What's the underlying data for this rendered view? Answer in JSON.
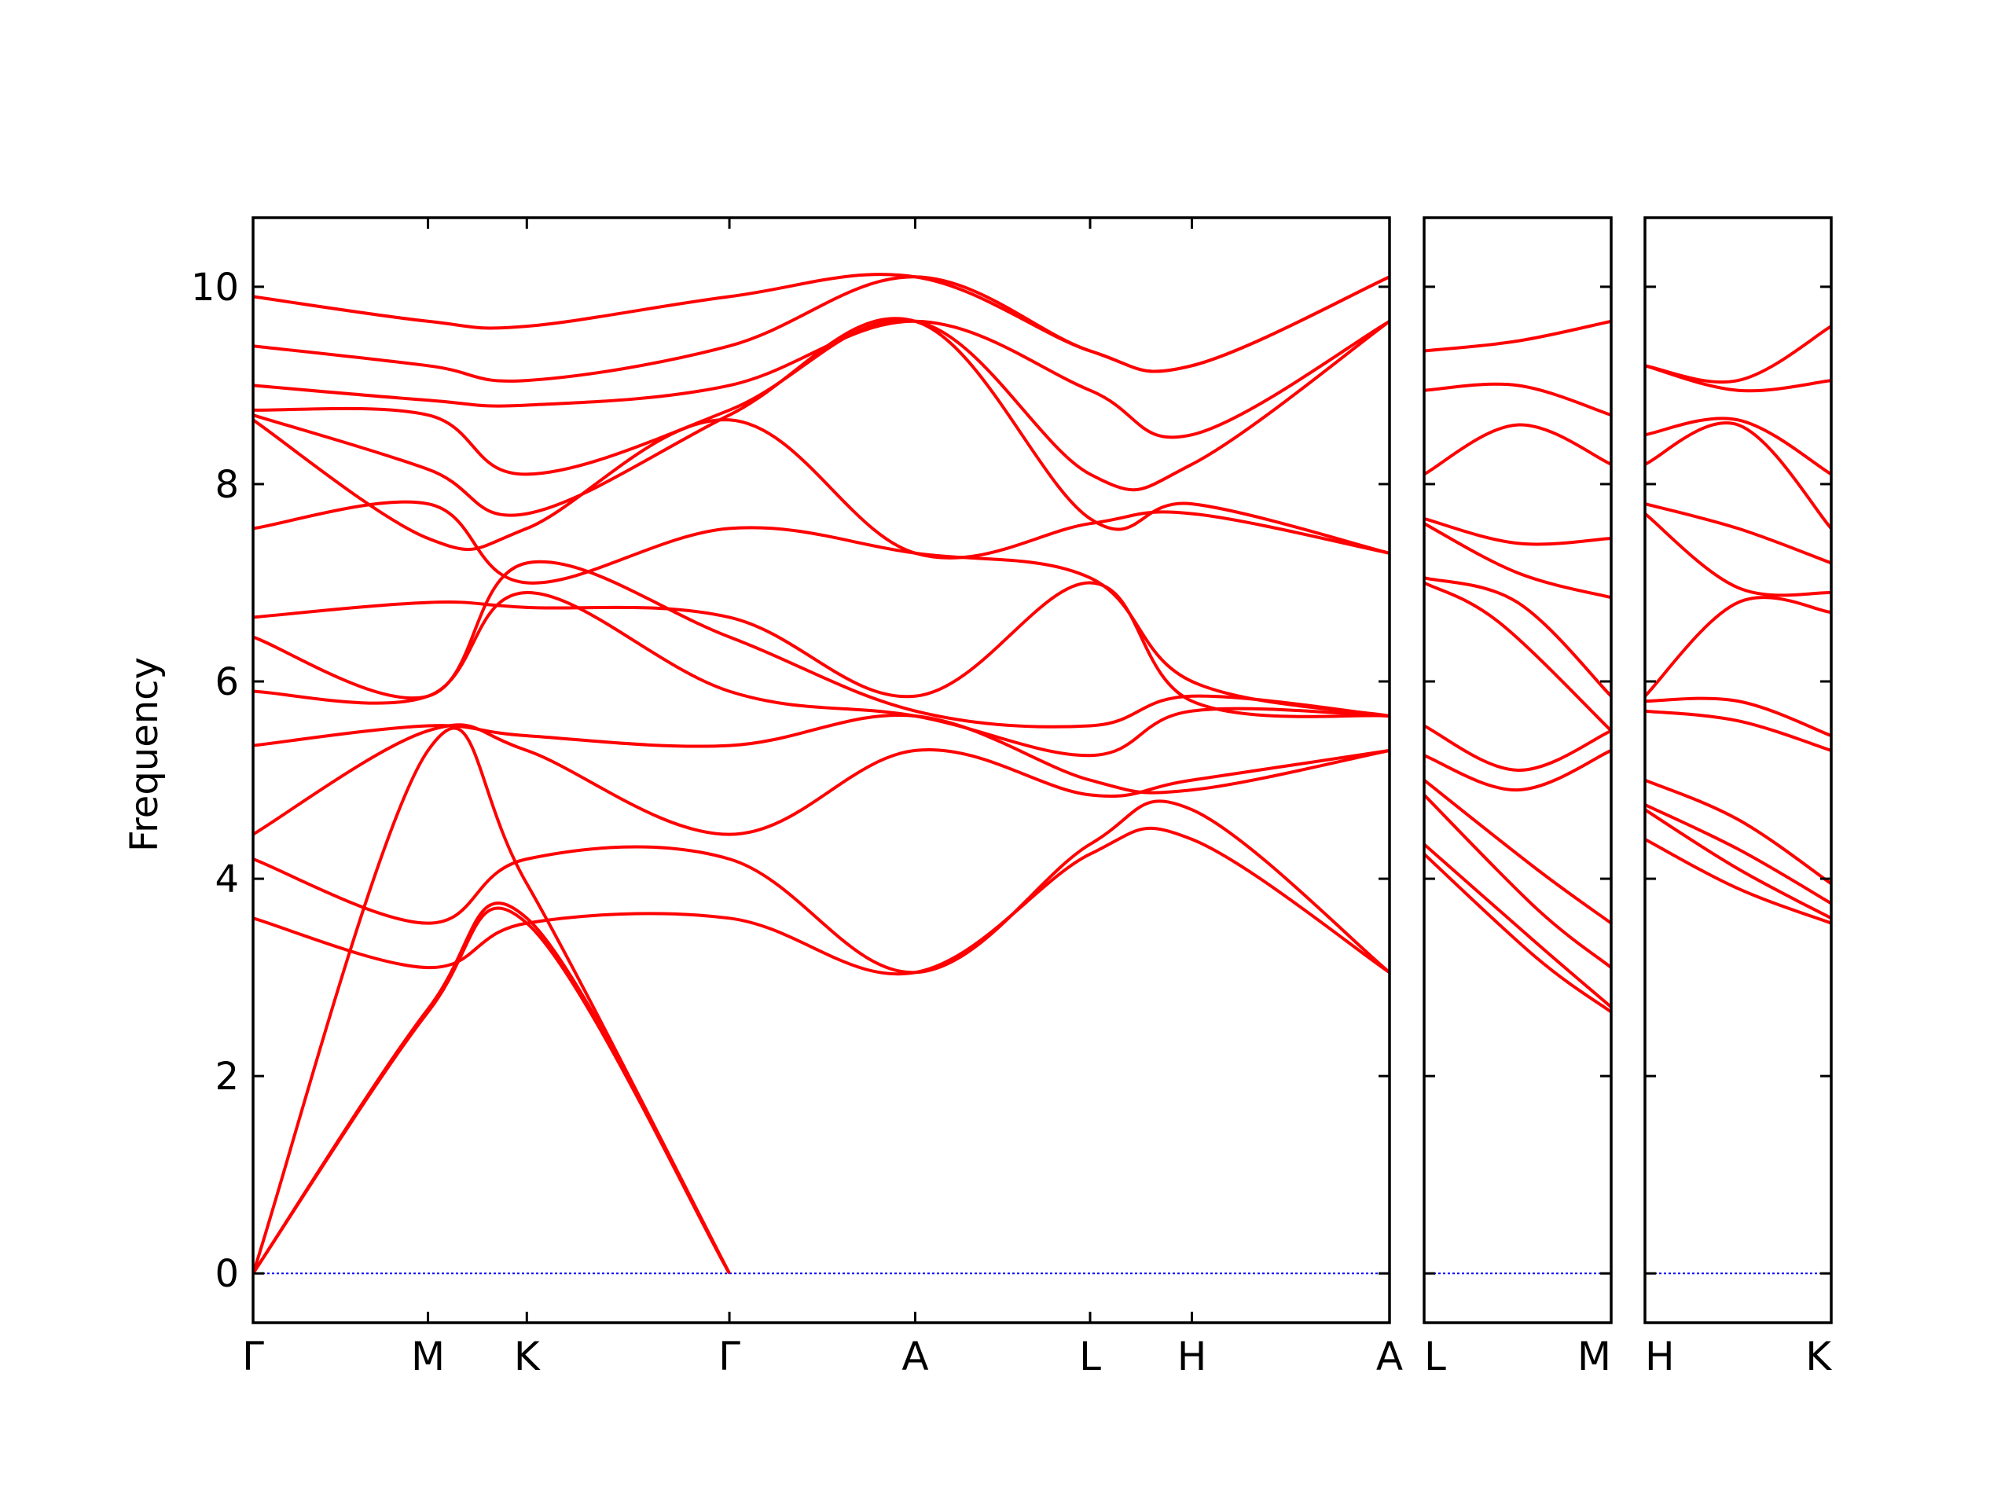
{
  "chart_data": {
    "type": "line",
    "ylabel": "Frequency",
    "ylim": [
      -0.5,
      10.7
    ],
    "yticks": [
      0,
      2,
      4,
      6,
      8,
      10
    ],
    "grid": false,
    "colors": {
      "bands": "#ff0000",
      "zero_line": "#0000ff",
      "axes": "#000000"
    },
    "panels": [
      {
        "xlim": [
          0,
          11.5
        ],
        "ticks": [
          {
            "x": 0,
            "label": "Γ"
          },
          {
            "x": 1.77,
            "label": "M"
          },
          {
            "x": 2.77,
            "label": "K"
          },
          {
            "x": 4.82,
            "label": "Γ"
          },
          {
            "x": 6.7,
            "label": "A"
          },
          {
            "x": 8.47,
            "label": "L"
          },
          {
            "x": 9.5,
            "label": "H"
          },
          {
            "x": 11.5,
            "label": "A"
          }
        ],
        "series": [
          {
            "x": [
              0,
              1.77,
              2.77,
              4.82
            ],
            "values": [
              0,
              2.65,
              3.55,
              0
            ]
          },
          {
            "x": [
              0,
              1.77,
              2.77,
              4.82
            ],
            "values": [
              0,
              2.68,
              3.6,
              0
            ]
          },
          {
            "x": [
              0,
              1.77,
              2.77,
              4.82
            ],
            "values": [
              0,
              5.3,
              3.95,
              0
            ]
          },
          {
            "x": [
              0,
              1.77,
              2.77,
              4.82,
              6.7,
              8.47,
              9.5,
              11.5
            ],
            "values": [
              3.6,
              3.1,
              3.55,
              3.6,
              3.05,
              4.25,
              4.4,
              3.05
            ]
          },
          {
            "x": [
              0,
              1.77,
              2.77,
              4.82,
              6.7,
              8.47,
              9.5,
              11.5
            ],
            "values": [
              4.2,
              3.55,
              4.2,
              4.2,
              3.05,
              4.35,
              4.7,
              3.05
            ]
          },
          {
            "x": [
              0,
              1.77,
              2.77,
              4.82,
              6.7,
              8.47,
              9.5,
              11.5
            ],
            "values": [
              4.45,
              5.5,
              5.3,
              4.45,
              5.3,
              4.85,
              5.0,
              5.3
            ]
          },
          {
            "x": [
              0,
              1.77,
              2.77,
              4.82,
              6.7,
              8.47,
              9.5,
              11.5
            ],
            "values": [
              5.35,
              5.55,
              5.45,
              5.35,
              5.65,
              5.0,
              4.9,
              5.3
            ]
          },
          {
            "x": [
              0,
              1.77,
              2.77,
              4.82,
              6.7,
              8.47,
              9.5,
              11.5
            ],
            "values": [
              5.9,
              5.85,
              6.9,
              5.9,
              5.65,
              5.25,
              5.7,
              5.65
            ]
          },
          {
            "x": [
              0,
              1.77,
              2.77,
              4.82,
              6.7,
              8.47,
              9.5,
              11.5
            ],
            "values": [
              6.45,
              5.85,
              7.2,
              6.45,
              5.7,
              5.55,
              5.85,
              5.65
            ]
          },
          {
            "x": [
              0,
              1.77,
              2.77,
              4.82,
              6.7,
              8.47,
              9.5,
              11.5
            ],
            "values": [
              6.65,
              6.8,
              6.75,
              6.65,
              5.85,
              7.0,
              5.8,
              5.65
            ]
          },
          {
            "x": [
              0,
              1.77,
              2.77,
              4.82,
              6.7,
              8.47,
              9.5,
              11.5
            ],
            "values": [
              7.55,
              7.8,
              7.0,
              7.55,
              7.3,
              7.05,
              6.0,
              5.65
            ]
          },
          {
            "x": [
              0,
              1.77,
              2.77,
              4.82,
              6.7,
              8.47,
              9.5,
              11.5
            ],
            "values": [
              8.65,
              7.45,
              7.55,
              8.65,
              7.3,
              7.6,
              7.7,
              7.3
            ]
          },
          {
            "x": [
              0,
              1.77,
              2.77,
              4.82,
              6.7,
              8.47,
              9.5,
              11.5
            ],
            "values": [
              8.7,
              8.15,
              7.7,
              8.7,
              9.65,
              7.65,
              7.8,
              7.3
            ]
          },
          {
            "x": [
              0,
              1.77,
              2.77,
              4.82,
              6.7,
              8.47,
              9.5,
              11.5
            ],
            "values": [
              8.75,
              8.7,
              8.1,
              8.75,
              9.65,
              8.1,
              8.2,
              9.65
            ]
          },
          {
            "x": [
              0,
              1.77,
              2.77,
              4.82,
              6.7,
              8.47,
              9.5,
              11.5
            ],
            "values": [
              9.0,
              8.85,
              8.8,
              9.0,
              9.65,
              8.95,
              8.5,
              9.65
            ]
          },
          {
            "x": [
              0,
              1.77,
              2.77,
              4.82,
              6.7,
              8.47,
              9.5,
              11.5
            ],
            "values": [
              9.4,
              9.2,
              9.05,
              9.4,
              10.1,
              9.35,
              9.2,
              10.1
            ]
          },
          {
            "x": [
              0,
              1.77,
              2.77,
              4.82,
              6.7,
              8.47,
              9.5,
              11.5
            ],
            "values": [
              9.9,
              9.65,
              9.6,
              9.9,
              10.1,
              9.35,
              9.2,
              10.1
            ]
          }
        ]
      },
      {
        "xlim": [
          0,
          1
        ],
        "ticks": [
          {
            "x": 0,
            "label": "L"
          },
          {
            "x": 1,
            "label": "M"
          }
        ],
        "series": [
          {
            "x": [
              0,
              0.6,
              1
            ],
            "values": [
              4.25,
              3.2,
              2.65
            ]
          },
          {
            "x": [
              0,
              0.6,
              1
            ],
            "values": [
              4.35,
              3.35,
              2.7
            ]
          },
          {
            "x": [
              0,
              0.6,
              1
            ],
            "values": [
              4.85,
              3.7,
              3.1
            ]
          },
          {
            "x": [
              0,
              0.6,
              1
            ],
            "values": [
              5.0,
              4.1,
              3.55
            ]
          },
          {
            "x": [
              0,
              0.5,
              1
            ],
            "values": [
              5.25,
              4.9,
              5.3
            ]
          },
          {
            "x": [
              0,
              0.5,
              1
            ],
            "values": [
              5.55,
              5.1,
              5.5
            ]
          },
          {
            "x": [
              0,
              0.4,
              1
            ],
            "values": [
              7.0,
              6.6,
              5.5
            ]
          },
          {
            "x": [
              0,
              0.5,
              1
            ],
            "values": [
              7.05,
              6.8,
              5.85
            ]
          },
          {
            "x": [
              0,
              0.5,
              1
            ],
            "values": [
              7.6,
              7.1,
              6.85
            ]
          },
          {
            "x": [
              0,
              0.5,
              1
            ],
            "values": [
              7.65,
              7.4,
              7.45
            ]
          },
          {
            "x": [
              0,
              0.5,
              1
            ],
            "values": [
              8.1,
              8.6,
              8.2
            ]
          },
          {
            "x": [
              0,
              0.5,
              1
            ],
            "values": [
              8.95,
              9.0,
              8.7
            ]
          },
          {
            "x": [
              0,
              0.5,
              1
            ],
            "values": [
              9.35,
              9.45,
              9.65
            ]
          }
        ]
      },
      {
        "xlim": [
          0,
          1
        ],
        "ticks": [
          {
            "x": 0,
            "label": "H"
          },
          {
            "x": 1,
            "label": "K"
          }
        ],
        "series": [
          {
            "x": [
              0,
              0.5,
              1
            ],
            "values": [
              4.4,
              3.9,
              3.55
            ]
          },
          {
            "x": [
              0,
              0.5,
              1
            ],
            "values": [
              4.7,
              4.1,
              3.6
            ]
          },
          {
            "x": [
              0,
              0.5,
              1
            ],
            "values": [
              4.75,
              4.3,
              3.75
            ]
          },
          {
            "x": [
              0,
              0.5,
              1
            ],
            "values": [
              5.0,
              4.6,
              3.95
            ]
          },
          {
            "x": [
              0,
              0.5,
              1
            ],
            "values": [
              5.7,
              5.6,
              5.3
            ]
          },
          {
            "x": [
              0,
              0.5,
              1
            ],
            "values": [
              5.8,
              5.8,
              5.45
            ]
          },
          {
            "x": [
              0,
              0.5,
              1
            ],
            "values": [
              5.85,
              6.8,
              6.7
            ]
          },
          {
            "x": [
              0,
              0.5,
              1
            ],
            "values": [
              7.7,
              6.95,
              6.9
            ]
          },
          {
            "x": [
              0,
              0.5,
              1
            ],
            "values": [
              7.8,
              7.55,
              7.2
            ]
          },
          {
            "x": [
              0,
              0.5,
              1
            ],
            "values": [
              8.2,
              8.6,
              7.55
            ]
          },
          {
            "x": [
              0,
              0.5,
              1
            ],
            "values": [
              8.5,
              8.65,
              8.1
            ]
          },
          {
            "x": [
              0,
              0.5,
              1
            ],
            "values": [
              9.2,
              8.95,
              9.05
            ]
          },
          {
            "x": [
              0,
              0.5,
              1
            ],
            "values": [
              9.2,
              9.05,
              9.6
            ]
          }
        ]
      }
    ]
  }
}
